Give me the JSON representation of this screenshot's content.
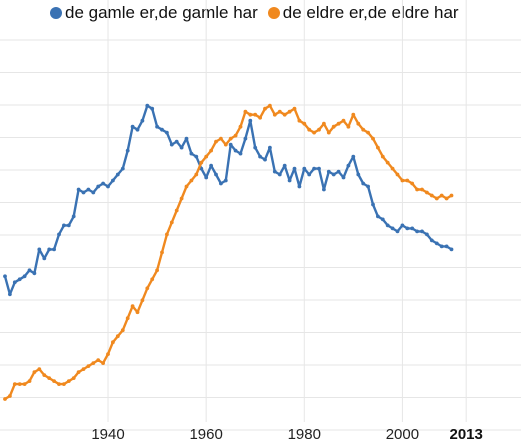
{
  "chart_data": {
    "type": "line",
    "title": "",
    "xlabel": "",
    "ylabel": "",
    "xlim": [
      1919,
      2015
    ],
    "ylim": [
      0,
      100
    ],
    "grid": true,
    "legend": "top-left",
    "x_ticks": [
      {
        "value": 1940,
        "label": "1940"
      },
      {
        "value": 1960,
        "label": "1960"
      },
      {
        "value": 1980,
        "label": "1980"
      },
      {
        "value": 2000,
        "label": "2000"
      },
      {
        "value": 2013,
        "label": "2013"
      }
    ],
    "series": [
      {
        "name": "de gamle er,de gamle har",
        "color": "#3a72b3",
        "points": [
          [
            1919,
            44
          ],
          [
            1920,
            38
          ],
          [
            1921,
            42
          ],
          [
            1922,
            43
          ],
          [
            1923,
            44
          ],
          [
            1924,
            46
          ],
          [
            1925,
            45
          ],
          [
            1926,
            53
          ],
          [
            1927,
            50
          ],
          [
            1928,
            53
          ],
          [
            1929,
            53
          ],
          [
            1930,
            58
          ],
          [
            1931,
            61
          ],
          [
            1932,
            61
          ],
          [
            1933,
            64
          ],
          [
            1934,
            73
          ],
          [
            1935,
            72
          ],
          [
            1936,
            73
          ],
          [
            1937,
            72
          ],
          [
            1938,
            74
          ],
          [
            1939,
            75
          ],
          [
            1940,
            74
          ],
          [
            1941,
            76
          ],
          [
            1942,
            78
          ],
          [
            1943,
            80
          ],
          [
            1944,
            86
          ],
          [
            1945,
            94
          ],
          [
            1946,
            93
          ],
          [
            1947,
            96
          ],
          [
            1948,
            101
          ],
          [
            1949,
            100
          ],
          [
            1950,
            94
          ],
          [
            1951,
            93
          ],
          [
            1952,
            92
          ],
          [
            1953,
            88
          ],
          [
            1954,
            89
          ],
          [
            1955,
            87
          ],
          [
            1956,
            90
          ],
          [
            1957,
            85
          ],
          [
            1958,
            84
          ],
          [
            1959,
            80
          ],
          [
            1960,
            77
          ],
          [
            1961,
            81
          ],
          [
            1962,
            78
          ],
          [
            1963,
            75
          ],
          [
            1964,
            76
          ],
          [
            1965,
            88
          ],
          [
            1966,
            86
          ],
          [
            1967,
            85
          ],
          [
            1968,
            90
          ],
          [
            1969,
            96
          ],
          [
            1970,
            87
          ],
          [
            1971,
            84
          ],
          [
            1972,
            83
          ],
          [
            1973,
            87
          ],
          [
            1974,
            79
          ],
          [
            1975,
            78
          ],
          [
            1976,
            81
          ],
          [
            1977,
            76
          ],
          [
            1978,
            80
          ],
          [
            1979,
            74
          ],
          [
            1980,
            80
          ],
          [
            1981,
            78
          ],
          [
            1982,
            80
          ],
          [
            1983,
            80
          ],
          [
            1984,
            73
          ],
          [
            1985,
            79
          ],
          [
            1986,
            78
          ],
          [
            1987,
            79
          ],
          [
            1988,
            77
          ],
          [
            1989,
            81
          ],
          [
            1990,
            84
          ],
          [
            1991,
            78
          ],
          [
            1992,
            75
          ],
          [
            1993,
            74
          ],
          [
            1994,
            68
          ],
          [
            1995,
            64
          ],
          [
            1996,
            63
          ],
          [
            1997,
            61
          ],
          [
            1998,
            60
          ],
          [
            1999,
            59
          ],
          [
            2000,
            61
          ],
          [
            2001,
            60
          ],
          [
            2002,
            60
          ],
          [
            2003,
            59
          ],
          [
            2004,
            59
          ],
          [
            2005,
            58
          ],
          [
            2006,
            56
          ],
          [
            2007,
            55
          ],
          [
            2008,
            54
          ],
          [
            2009,
            54
          ],
          [
            2010,
            53
          ]
        ]
      },
      {
        "name": "de eldre er,de eldre har",
        "color": "#f0891f",
        "points": [
          [
            1919,
            3
          ],
          [
            1920,
            4
          ],
          [
            1921,
            8
          ],
          [
            1922,
            8
          ],
          [
            1923,
            8
          ],
          [
            1924,
            9
          ],
          [
            1925,
            12
          ],
          [
            1926,
            13
          ],
          [
            1927,
            11
          ],
          [
            1928,
            10
          ],
          [
            1929,
            9
          ],
          [
            1930,
            8
          ],
          [
            1931,
            8
          ],
          [
            1932,
            9
          ],
          [
            1933,
            10
          ],
          [
            1934,
            12
          ],
          [
            1935,
            13
          ],
          [
            1936,
            14
          ],
          [
            1937,
            15
          ],
          [
            1938,
            16
          ],
          [
            1939,
            15
          ],
          [
            1940,
            18
          ],
          [
            1941,
            22
          ],
          [
            1942,
            24
          ],
          [
            1943,
            26
          ],
          [
            1944,
            30
          ],
          [
            1945,
            34
          ],
          [
            1946,
            32
          ],
          [
            1947,
            36
          ],
          [
            1948,
            40
          ],
          [
            1949,
            43
          ],
          [
            1950,
            46
          ],
          [
            1951,
            52
          ],
          [
            1952,
            58
          ],
          [
            1953,
            62
          ],
          [
            1954,
            66
          ],
          [
            1955,
            70
          ],
          [
            1956,
            74
          ],
          [
            1957,
            76
          ],
          [
            1958,
            78
          ],
          [
            1959,
            82
          ],
          [
            1960,
            84
          ],
          [
            1961,
            86
          ],
          [
            1962,
            89
          ],
          [
            1963,
            90
          ],
          [
            1964,
            88
          ],
          [
            1965,
            90
          ],
          [
            1966,
            91
          ],
          [
            1967,
            94
          ],
          [
            1968,
            99
          ],
          [
            1969,
            98
          ],
          [
            1970,
            98
          ],
          [
            1971,
            97
          ],
          [
            1972,
            100
          ],
          [
            1973,
            101
          ],
          [
            1974,
            98
          ],
          [
            1975,
            99
          ],
          [
            1976,
            98
          ],
          [
            1977,
            99
          ],
          [
            1978,
            100
          ],
          [
            1979,
            96
          ],
          [
            1980,
            95
          ],
          [
            1981,
            93
          ],
          [
            1982,
            92
          ],
          [
            1983,
            93
          ],
          [
            1984,
            95
          ],
          [
            1985,
            92
          ],
          [
            1986,
            94
          ],
          [
            1987,
            95
          ],
          [
            1988,
            96
          ],
          [
            1989,
            94
          ],
          [
            1990,
            98
          ],
          [
            1991,
            95
          ],
          [
            1992,
            93
          ],
          [
            1993,
            92
          ],
          [
            1994,
            90
          ],
          [
            1995,
            87
          ],
          [
            1996,
            84
          ],
          [
            1997,
            82
          ],
          [
            1998,
            80
          ],
          [
            1999,
            78
          ],
          [
            2000,
            76
          ],
          [
            2001,
            76
          ],
          [
            2002,
            75
          ],
          [
            2003,
            73
          ],
          [
            2004,
            73
          ],
          [
            2005,
            72
          ],
          [
            2006,
            71
          ],
          [
            2007,
            70
          ],
          [
            2008,
            71
          ],
          [
            2009,
            70
          ],
          [
            2010,
            71
          ]
        ]
      }
    ]
  }
}
